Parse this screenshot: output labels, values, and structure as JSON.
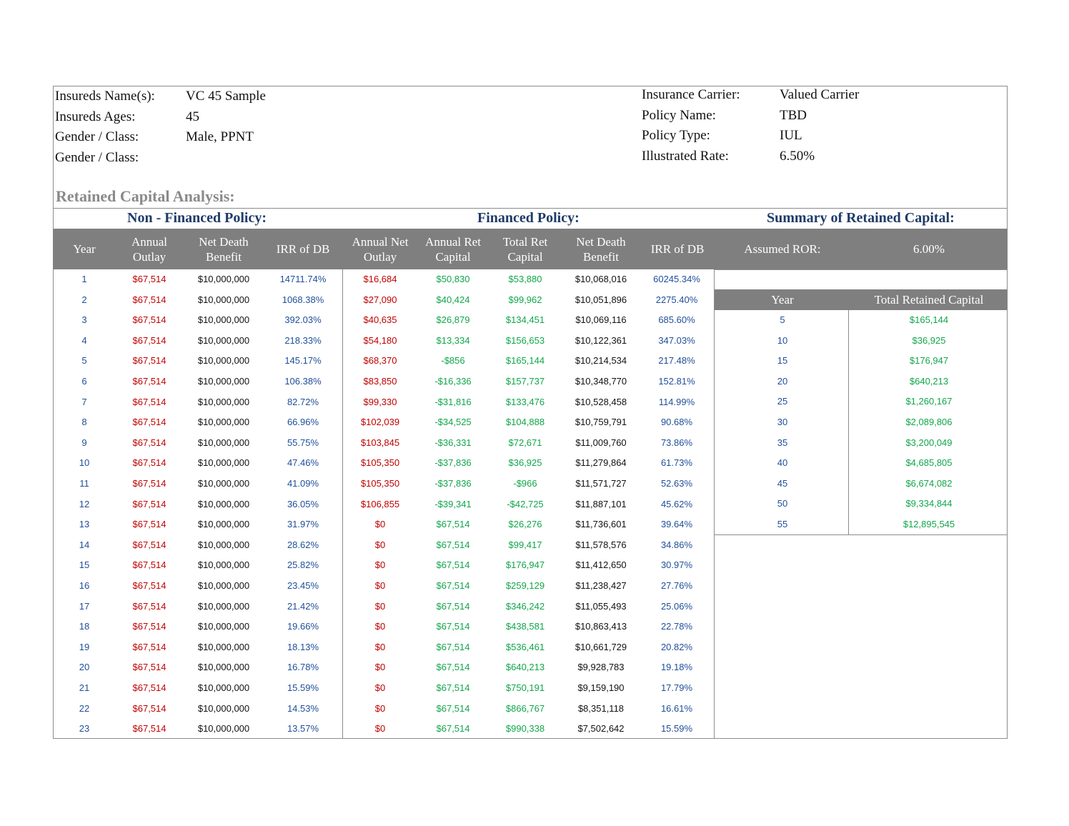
{
  "insured": {
    "fields": [
      {
        "label": "Insureds Name(s):",
        "value": "VC 45 Sample"
      },
      {
        "label": "Insureds Ages:",
        "value": "45"
      },
      {
        "label": "Gender / Class:",
        "value": "Male, PPNT"
      },
      {
        "label": "Gender / Class:",
        "value": ""
      }
    ]
  },
  "policy": {
    "fields": [
      {
        "label": "Insurance Carrier:",
        "value": "Valued Carrier"
      },
      {
        "label": "Policy Name:",
        "value": "TBD"
      },
      {
        "label": "Policy Type:",
        "value": "IUL"
      },
      {
        "label": "Illustrated Rate:",
        "value": "6.50%"
      }
    ]
  },
  "analysis": {
    "title": "Retained Capital Analysis:",
    "non_financed_title": "Non - Financed Policy:",
    "financed_title": "Financed Policy:",
    "summary_title": "Summary of Retained Capital:"
  },
  "columns": {
    "year": "Year",
    "annual_outlay": "Annual\nOutlay",
    "net_death_benefit": "Net Death\nBenefit",
    "irr_db": "IRR of DB",
    "annual_net_outlay": "Annual Net\nOutlay",
    "annual_ret_capital": "Annual Ret\nCapital",
    "total_ret_capital": "Total Ret\nCapital",
    "net_death_benefit_f": "Net Death\nBenefit",
    "irr_db_f": "IRR of DB"
  },
  "summary": {
    "assumed_ror_label": "Assumed ROR:",
    "assumed_ror_value": "6.00%",
    "year_header": "Year",
    "total_header": "Total Retained Capital",
    "rows": [
      [
        "5",
        "$165,144"
      ],
      [
        "10",
        "$36,925"
      ],
      [
        "15",
        "$176,947"
      ],
      [
        "20",
        "$640,213"
      ],
      [
        "25",
        "$1,260,167"
      ],
      [
        "30",
        "$2,089,806"
      ],
      [
        "35",
        "$3,200,049"
      ],
      [
        "40",
        "$4,685,805"
      ],
      [
        "45",
        "$6,674,082"
      ],
      [
        "50",
        "$9,334,844"
      ],
      [
        "55",
        "$12,895,545"
      ]
    ]
  },
  "rows": [
    [
      "1",
      "$67,514",
      "$10,000,000",
      "14711.74%",
      "$16,684",
      "$50,830",
      "$53,880",
      "$10,068,016",
      "60245.34%"
    ],
    [
      "2",
      "$67,514",
      "$10,000,000",
      "1068.38%",
      "$27,090",
      "$40,424",
      "$99,962",
      "$10,051,896",
      "2275.40%"
    ],
    [
      "3",
      "$67,514",
      "$10,000,000",
      "392.03%",
      "$40,635",
      "$26,879",
      "$134,451",
      "$10,069,116",
      "685.60%"
    ],
    [
      "4",
      "$67,514",
      "$10,000,000",
      "218.33%",
      "$54,180",
      "$13,334",
      "$156,653",
      "$10,122,361",
      "347.03%"
    ],
    [
      "5",
      "$67,514",
      "$10,000,000",
      "145.17%",
      "$68,370",
      "-$856",
      "$165,144",
      "$10,214,534",
      "217.48%"
    ],
    [
      "6",
      "$67,514",
      "$10,000,000",
      "106.38%",
      "$83,850",
      "-$16,336",
      "$157,737",
      "$10,348,770",
      "152.81%"
    ],
    [
      "7",
      "$67,514",
      "$10,000,000",
      "82.72%",
      "$99,330",
      "-$31,816",
      "$133,476",
      "$10,528,458",
      "114.99%"
    ],
    [
      "8",
      "$67,514",
      "$10,000,000",
      "66.96%",
      "$102,039",
      "-$34,525",
      "$104,888",
      "$10,759,791",
      "90.68%"
    ],
    [
      "9",
      "$67,514",
      "$10,000,000",
      "55.75%",
      "$103,845",
      "-$36,331",
      "$72,671",
      "$11,009,760",
      "73.86%"
    ],
    [
      "10",
      "$67,514",
      "$10,000,000",
      "47.46%",
      "$105,350",
      "-$37,836",
      "$36,925",
      "$11,279,864",
      "61.73%"
    ],
    [
      "11",
      "$67,514",
      "$10,000,000",
      "41.09%",
      "$105,350",
      "-$37,836",
      "-$966",
      "$11,571,727",
      "52.63%"
    ],
    [
      "12",
      "$67,514",
      "$10,000,000",
      "36.05%",
      "$106,855",
      "-$39,341",
      "-$42,725",
      "$11,887,101",
      "45.62%"
    ],
    [
      "13",
      "$67,514",
      "$10,000,000",
      "31.97%",
      "$0",
      "$67,514",
      "$26,276",
      "$11,736,601",
      "39.64%"
    ],
    [
      "14",
      "$67,514",
      "$10,000,000",
      "28.62%",
      "$0",
      "$67,514",
      "$99,417",
      "$11,578,576",
      "34.86%"
    ],
    [
      "15",
      "$67,514",
      "$10,000,000",
      "25.82%",
      "$0",
      "$67,514",
      "$176,947",
      "$11,412,650",
      "30.97%"
    ],
    [
      "16",
      "$67,514",
      "$10,000,000",
      "23.45%",
      "$0",
      "$67,514",
      "$259,129",
      "$11,238,427",
      "27.76%"
    ],
    [
      "17",
      "$67,514",
      "$10,000,000",
      "21.42%",
      "$0",
      "$67,514",
      "$346,242",
      "$11,055,493",
      "25.06%"
    ],
    [
      "18",
      "$67,514",
      "$10,000,000",
      "19.66%",
      "$0",
      "$67,514",
      "$438,581",
      "$10,863,413",
      "22.78%"
    ],
    [
      "19",
      "$67,514",
      "$10,000,000",
      "18.13%",
      "$0",
      "$67,514",
      "$536,461",
      "$10,661,729",
      "20.82%"
    ],
    [
      "20",
      "$67,514",
      "$10,000,000",
      "16.78%",
      "$0",
      "$67,514",
      "$640,213",
      "$9,928,783",
      "19.18%"
    ],
    [
      "21",
      "$67,514",
      "$10,000,000",
      "15.59%",
      "$0",
      "$67,514",
      "$750,191",
      "$9,159,190",
      "17.79%"
    ],
    [
      "22",
      "$67,514",
      "$10,000,000",
      "14.53%",
      "$0",
      "$67,514",
      "$866,767",
      "$8,351,118",
      "16.61%"
    ],
    [
      "23",
      "$67,514",
      "$10,000,000",
      "13.57%",
      "$0",
      "$67,514",
      "$990,338",
      "$7,502,642",
      "15.59%"
    ]
  ],
  "colors": {
    "header_fill": "#7f7f7f",
    "title_navy": "#1f3b68",
    "value_red": "#c00000",
    "value_green": "#10a64a",
    "value_blue": "#1f4e9a"
  }
}
